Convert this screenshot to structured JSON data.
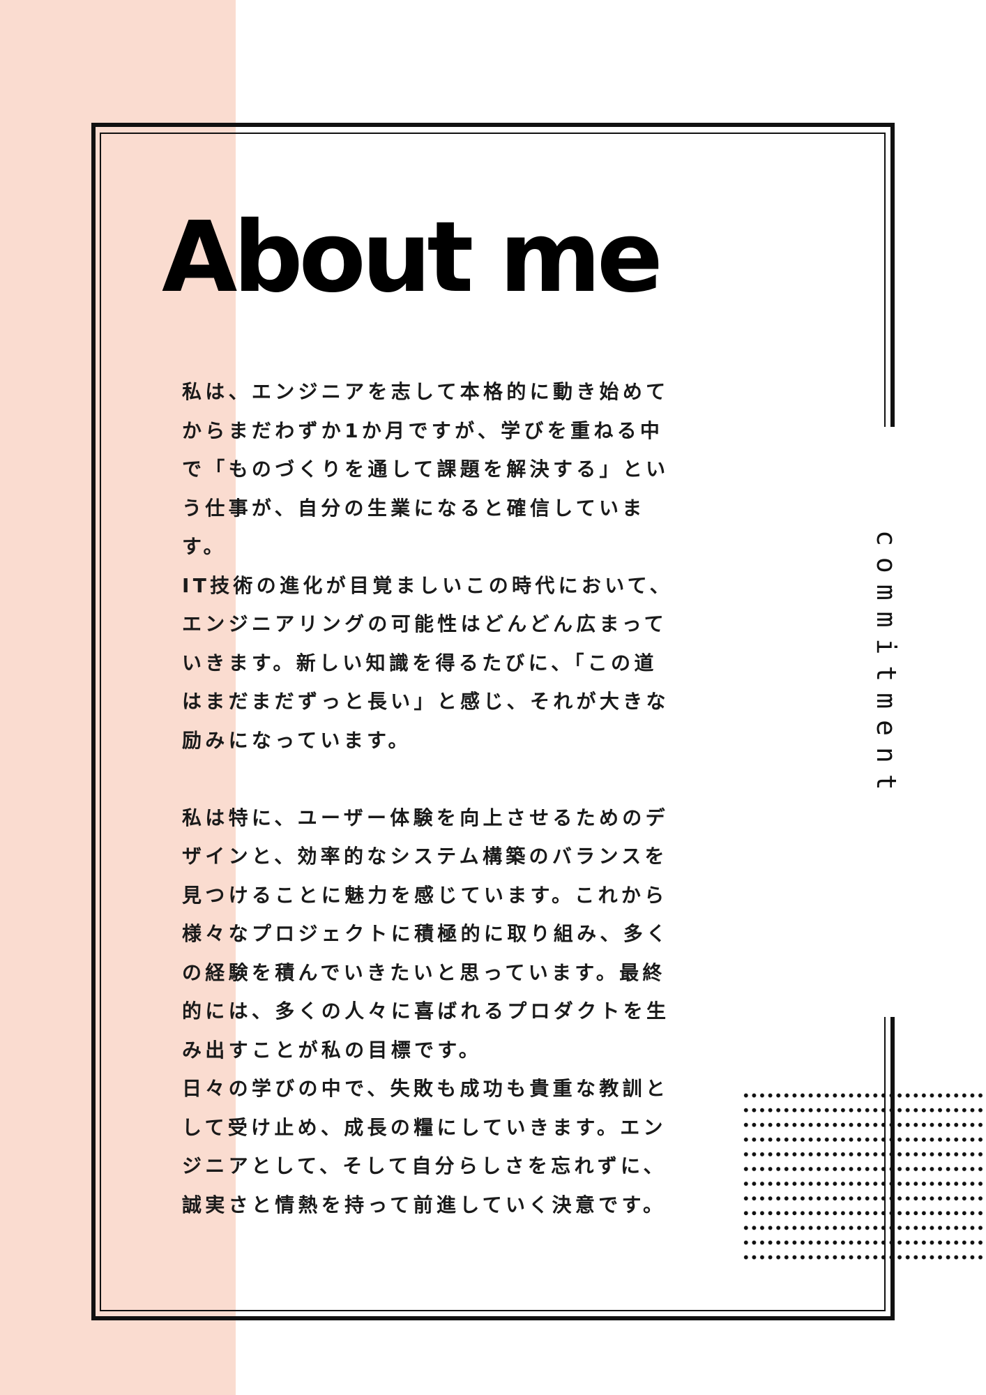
{
  "page": {
    "title": "About me",
    "side_label": "commitment",
    "colors": {
      "background": "#ffffff",
      "accent_band": "#fadcd0",
      "ink": "#111111"
    }
  },
  "body": {
    "paragraphs": [
      "私は、エンジニアを志して本格的に動き始めてからまだわずか1か月ですが、学びを重ねる中で「ものづくりを通して課題を解決する」という仕事が、自分の生業になると確信しています。",
      "IT技術の進化が目覚ましいこの時代において、エンジニアリングの可能性はどんどん広まっていきます。新しい知識を得るたびに、「この道はまだまだずっと長い」と感じ、それが大きな励みになっています。",
      "私は特に、ユーザー体験を向上させるためのデザインと、効率的なシステム構築のバランスを見つけることに魅力を感じています。これから様々なプロジェクトに積極的に取り組み、多くの経験を積んでいきたいと思っています。最終的には、多くの人々に喜ばれるプロダクトを生み出すことが私の目標です。",
      "日々の学びの中で、失敗も成功も貴重な教訓として受け止め、成長の糧にしていきます。エンジニアとして、そして自分らしさを忘れずに、誠実さと情熱を持って前進していく決意です。"
    ]
  }
}
